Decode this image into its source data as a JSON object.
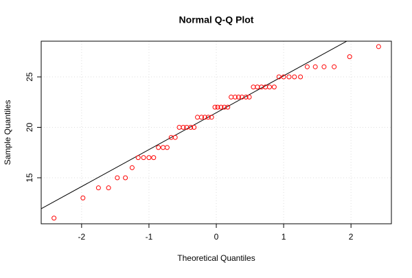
{
  "chart_data": {
    "type": "scatter",
    "title": "Normal Q-Q Plot",
    "x_label": "Theoretical Quantiles",
    "y_label": "Sample Quantiles",
    "x": [
      -2.41,
      -1.98,
      -1.75,
      -1.6,
      -1.47,
      -1.35,
      -1.25,
      -1.16,
      -1.08,
      -1.0,
      -0.93,
      -0.86,
      -0.79,
      -0.73,
      -0.67,
      -0.61,
      -0.55,
      -0.49,
      -0.44,
      -0.38,
      -0.33,
      -0.28,
      -0.22,
      -0.17,
      -0.12,
      -0.07,
      -0.02,
      0.02,
      0.07,
      0.12,
      0.17,
      0.22,
      0.28,
      0.33,
      0.38,
      0.44,
      0.49,
      0.55,
      0.61,
      0.67,
      0.73,
      0.79,
      0.86,
      0.93,
      1.0,
      1.08,
      1.16,
      1.25,
      1.35,
      1.47,
      1.6,
      1.75,
      1.98,
      2.41
    ],
    "values": [
      11,
      13,
      14,
      14,
      15,
      15,
      16,
      17,
      17,
      17,
      17,
      18,
      18,
      18,
      19,
      19,
      20,
      20,
      20,
      20,
      20,
      21,
      21,
      21,
      21,
      21,
      22,
      22,
      22,
      22,
      22,
      23,
      23,
      23,
      23,
      23,
      23,
      24,
      24,
      24,
      24,
      24,
      24,
      25,
      25,
      25,
      25,
      25,
      26,
      26,
      26,
      26,
      27,
      28
    ],
    "color": "#ff0000",
    "reference_line": {
      "intercept": 21.45,
      "slope": 3.66,
      "color": "#000000"
    },
    "xlim": [
      -2.6,
      2.6
    ],
    "ylim": [
      10.44,
      28.54
    ],
    "xticks": [
      -2,
      -1,
      0,
      1,
      2
    ],
    "yticks": [
      15,
      20,
      25
    ],
    "grid": true
  }
}
